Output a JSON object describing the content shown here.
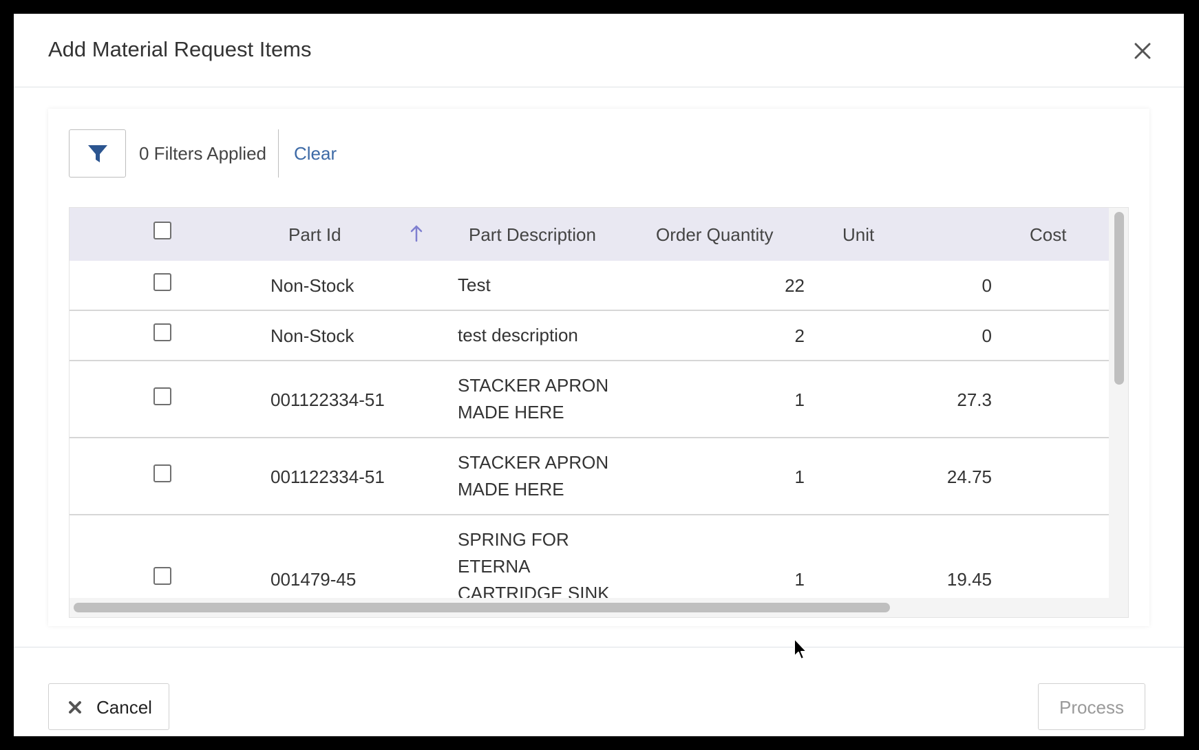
{
  "dialog": {
    "title": "Add Material Request Items"
  },
  "filters": {
    "status_text": "0 Filters Applied",
    "clear_label": "Clear"
  },
  "table": {
    "columns": [
      "Part Id",
      "Part Description",
      "Order Quantity",
      "Unit",
      "Cost"
    ],
    "sort": {
      "column": "Part Id",
      "direction": "ascending"
    },
    "rows": [
      {
        "part_id": "Non-Stock",
        "description": [
          "Test"
        ],
        "order_quantity": "22",
        "unit_cost": "0"
      },
      {
        "part_id": "Non-Stock",
        "description": [
          "test description"
        ],
        "order_quantity": "2",
        "unit_cost": "0"
      },
      {
        "part_id": "001122334-51",
        "description": [
          "STACKER APRON",
          "MADE HERE"
        ],
        "order_quantity": "1",
        "unit_cost": "27.3"
      },
      {
        "part_id": "001122334-51",
        "description": [
          "STACKER APRON",
          "MADE HERE"
        ],
        "order_quantity": "1",
        "unit_cost": "24.75"
      },
      {
        "part_id": "001479-45",
        "description": [
          "SPRING FOR",
          "ETERNA",
          "CARTRIDGE SINK"
        ],
        "order_quantity": "1",
        "unit_cost": "19.45"
      }
    ]
  },
  "footer": {
    "cancel_label": "Cancel",
    "process_label": "Process"
  },
  "colors": {
    "accent": "#2c5590",
    "link": "#3d6aa6",
    "header_bg": "#e9e8f2",
    "sort_icon": "#7f7fd0"
  },
  "icons": {
    "close": "close-icon",
    "filter": "filter-icon",
    "sort": "arrow-up-icon",
    "cancel": "x-icon"
  }
}
